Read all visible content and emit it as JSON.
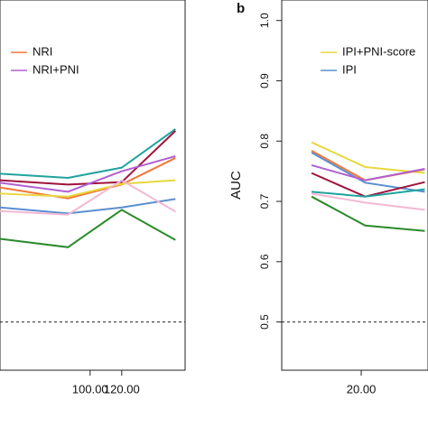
{
  "chart_data": [
    {
      "type": "line",
      "xlim": [
        43,
        160.1
      ],
      "ylim": [
        0.42,
        1.034
      ],
      "xticks": [
        {
          "value": 100,
          "label": "100.00"
        },
        {
          "value": 120,
          "label": "120.00"
        }
      ],
      "hline": 0.5,
      "series": [
        {
          "color": "#20a39e",
          "x": [
            43,
            86,
            120,
            154
          ],
          "values": [
            0.746,
            0.739,
            0.756,
            0.82
          ]
        },
        {
          "color": "#a0143c",
          "x": [
            43,
            86,
            120,
            154
          ],
          "values": [
            0.735,
            0.728,
            0.732,
            0.817
          ]
        },
        {
          "name": "NRI",
          "color": "#f07838",
          "x": [
            43,
            86,
            120,
            154
          ],
          "values": [
            0.723,
            0.705,
            0.728,
            0.772
          ]
        },
        {
          "name": "NRI+PNI",
          "color": "#b060d0",
          "x": [
            43,
            86,
            120,
            154
          ],
          "values": [
            0.731,
            0.716,
            0.75,
            0.775
          ]
        },
        {
          "color": "#e8d840",
          "x": [
            43,
            86,
            120,
            154
          ],
          "values": [
            0.713,
            0.708,
            0.729,
            0.735
          ]
        },
        {
          "color": "#5b8fd0",
          "x": [
            43,
            86,
            120,
            154
          ],
          "values": [
            0.69,
            0.68,
            0.69,
            0.704
          ]
        },
        {
          "color": "#f2b8d4",
          "x": [
            43,
            86,
            120,
            154
          ],
          "values": [
            0.684,
            0.678,
            0.735,
            0.683
          ]
        },
        {
          "color": "#2a8a2a",
          "x": [
            43,
            86,
            120,
            154
          ],
          "values": [
            0.638,
            0.624,
            0.686,
            0.636
          ]
        }
      ]
    },
    {
      "type": "line",
      "panel": "b",
      "ylabel": "AUC",
      "xlim": [
        0,
        36.8
      ],
      "ylim": [
        0.42,
        1.034
      ],
      "xticks": [
        {
          "value": 20,
          "label": "20.00"
        }
      ],
      "yticks": [
        {
          "value": 0.5,
          "label": "0.5"
        },
        {
          "value": 0.6,
          "label": "0.6"
        },
        {
          "value": 0.7,
          "label": "0.7"
        },
        {
          "value": 0.8,
          "label": "0.8"
        },
        {
          "value": 0.9,
          "label": "0.9"
        },
        {
          "value": 1.0,
          "label": "1.0"
        }
      ],
      "hline": 0.5,
      "series": [
        {
          "name": "IPI+PNI-score",
          "color": "#e8d840",
          "x": [
            7.5,
            21,
            36
          ],
          "values": [
            0.798,
            0.757,
            0.747
          ]
        },
        {
          "color": "#f07838",
          "x": [
            7.5,
            21,
            36
          ],
          "values": [
            0.784,
            0.735,
            0.753
          ]
        },
        {
          "name": "IPI",
          "color": "#5b8fd0",
          "x": [
            7.5,
            21,
            36
          ],
          "values": [
            0.781,
            0.731,
            0.716
          ]
        },
        {
          "color": "#b060d0",
          "x": [
            7.5,
            21,
            36
          ],
          "values": [
            0.76,
            0.735,
            0.754
          ]
        },
        {
          "color": "#a0143c",
          "x": [
            7.5,
            21,
            36
          ],
          "values": [
            0.747,
            0.708,
            0.732
          ]
        },
        {
          "color": "#20a39e",
          "x": [
            7.5,
            21,
            36
          ],
          "values": [
            0.716,
            0.708,
            0.72
          ]
        },
        {
          "color": "#f2b8d4",
          "x": [
            7.5,
            21,
            36
          ],
          "values": [
            0.713,
            0.698,
            0.686
          ]
        },
        {
          "color": "#2a8a2a",
          "x": [
            7.5,
            21,
            36
          ],
          "values": [
            0.708,
            0.66,
            0.651
          ]
        }
      ]
    }
  ]
}
